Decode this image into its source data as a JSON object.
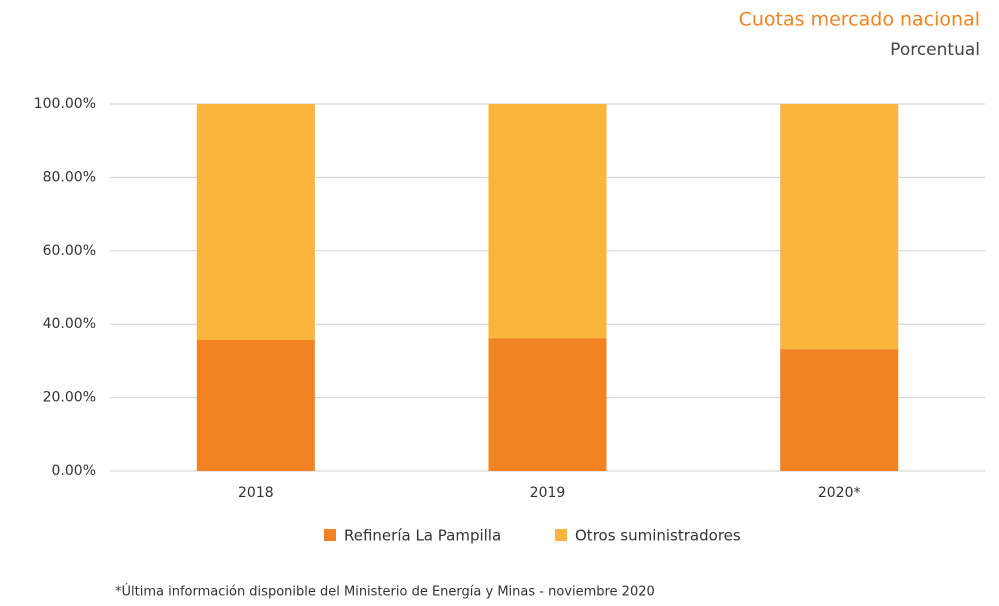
{
  "chart_data": {
    "type": "stacked_bar",
    "title": "Cuotas mercado nacional",
    "subtitle": "Porcentual",
    "categories": [
      "2018",
      "2019",
      "2020*"
    ],
    "series": [
      {
        "name": "Refinería La Pampilla",
        "color": "#f28322",
        "values": [
          35.7,
          36.2,
          33.2
        ]
      },
      {
        "name": "Otros suministradores",
        "color": "#f9b53c",
        "values": [
          64.3,
          63.8,
          66.8
        ]
      }
    ],
    "ylim": [
      0,
      100
    ],
    "yticks": [
      {
        "value": 0,
        "label": "0.00%"
      },
      {
        "value": 20,
        "label": "20.00%"
      },
      {
        "value": 40,
        "label": "40.00%"
      },
      {
        "value": 60,
        "label": "60.00%"
      },
      {
        "value": 80,
        "label": "80.00%"
      },
      {
        "value": 100,
        "label": "100.00%"
      }
    ],
    "grid": true,
    "legend": "bottom",
    "footnote": "*Última información disponible del Ministerio de Energía y Minas - noviembre 2020"
  }
}
